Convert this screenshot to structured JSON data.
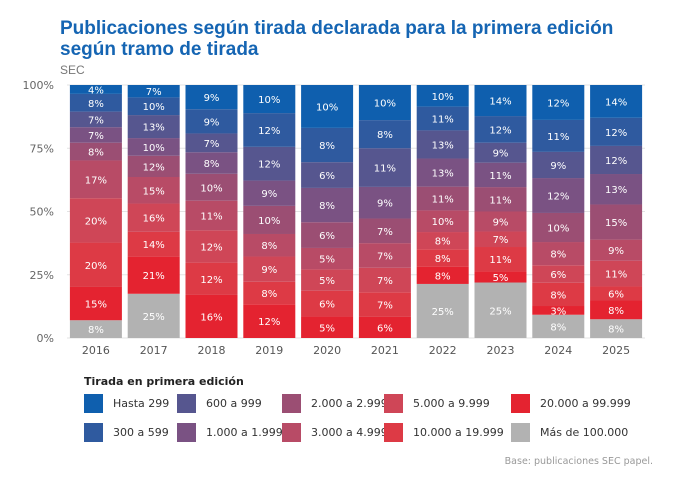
{
  "chart_data": {
    "type": "bar",
    "stacked": "100%",
    "title": "Publicaciones según tirada declarada para la primera edición según tramo de tirada",
    "subtitle": "SEC",
    "categories": [
      "2016",
      "2017",
      "2018",
      "2019",
      "2020",
      "2021",
      "2022",
      "2023",
      "2024",
      "2025"
    ],
    "yticks": [
      "0%",
      "25%",
      "50%",
      "75%",
      "100%"
    ],
    "ylim": [
      0,
      100
    ],
    "grid": true,
    "legend_title": "Tirada en primera edición",
    "legend_placement": "bottom",
    "series": [
      {
        "name": "Hasta 299",
        "color": "#0f5fae",
        "values": [
          4,
          7,
          9,
          10,
          10,
          10,
          10,
          14,
          12,
          14
        ]
      },
      {
        "name": "300 a 599",
        "color": "#2f5a9f",
        "values": [
          8,
          10,
          9,
          12,
          8,
          8,
          11,
          12,
          11,
          12
        ]
      },
      {
        "name": "600 a 999",
        "color": "#56568f",
        "values": [
          7,
          13,
          7,
          12,
          6,
          11,
          13,
          9,
          9,
          12
        ]
      },
      {
        "name": "1.000 a 1.999",
        "color": "#7a5283",
        "values": [
          7,
          10,
          8,
          9,
          8,
          9,
          13,
          11,
          12,
          13
        ]
      },
      {
        "name": "2.000 a 2.999",
        "color": "#9b4e73",
        "values": [
          8,
          12,
          10,
          10,
          6,
          7,
          11,
          11,
          10,
          15
        ]
      },
      {
        "name": "3.000 a 4.999",
        "color": "#b84b66",
        "values": [
          17,
          15,
          11,
          8,
          5,
          7,
          10,
          9,
          8,
          9
        ]
      },
      {
        "name": "5.000 a 9.999",
        "color": "#cf4657",
        "values": [
          20,
          16,
          12,
          9,
          5,
          7,
          8,
          7,
          6,
          11
        ]
      },
      {
        "name": "10.000 a 19.999",
        "color": "#dd3a45",
        "values": [
          20,
          14,
          12,
          8,
          6,
          7,
          8,
          11,
          8,
          6
        ]
      },
      {
        "name": "20.000 a 99.999",
        "color": "#e42330",
        "values": [
          15,
          21,
          16,
          12,
          5,
          6,
          8,
          5,
          3,
          8
        ]
      },
      {
        "name": "Más de 100.000",
        "color": "#b2b2b2",
        "values": [
          8,
          25,
          0,
          0,
          0,
          0,
          25,
          25,
          8,
          8
        ]
      }
    ],
    "footnote": "Base: publicaciones SEC papel."
  }
}
